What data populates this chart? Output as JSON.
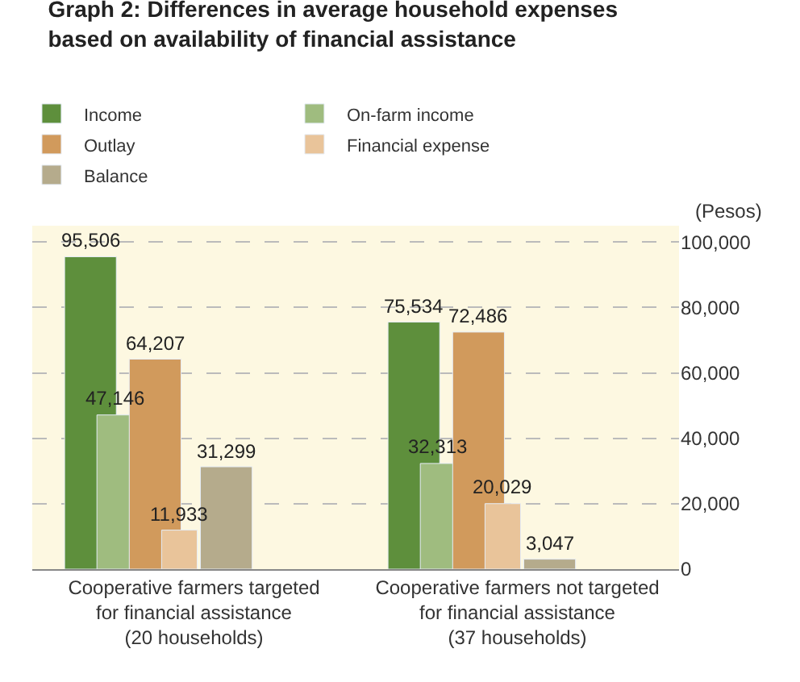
{
  "chart_data": {
    "type": "bar",
    "title": "Graph 2: Differences in average household expenses\nbased on availability of financial assistance",
    "ylabel": "(Pesos)",
    "categories": [
      "Cooperative farmers targeted\nfor financial assistance\n(20 households)",
      "Cooperative farmers not targeted\nfor financial assistance\n(37 households)"
    ],
    "series": [
      {
        "name": "Income",
        "color": "#5e8f3c",
        "values": [
          95506,
          75534
        ],
        "value_labels": [
          "95,506",
          "75,534"
        ]
      },
      {
        "name": "On-farm income",
        "color": "#9fbc7f",
        "values": [
          47146,
          32313
        ],
        "value_labels": [
          "47,146",
          "32,313"
        ]
      },
      {
        "name": "Outlay",
        "color": "#d19a5c",
        "values": [
          64207,
          72486
        ],
        "value_labels": [
          "64,207",
          "72,486"
        ]
      },
      {
        "name": "Financial expense",
        "color": "#e9c49a",
        "values": [
          11933,
          20029
        ],
        "value_labels": [
          "11,933",
          "20,029"
        ]
      },
      {
        "name": "Balance",
        "color": "#b5ab8c",
        "values": [
          31299,
          3047
        ],
        "value_labels": [
          "31,299",
          "3,047"
        ]
      }
    ],
    "ylim": [
      0,
      105000
    ],
    "yticks": [
      0,
      {
        "value": 20000,
        "label": "20,000"
      },
      {
        "value": 40000,
        "label": "40,000"
      },
      {
        "value": 60000,
        "label": "60,000"
      },
      {
        "value": 80000,
        "label": "80,000"
      },
      {
        "value": 100000,
        "label": "100,000"
      }
    ],
    "grid": "y",
    "legend": "top"
  }
}
